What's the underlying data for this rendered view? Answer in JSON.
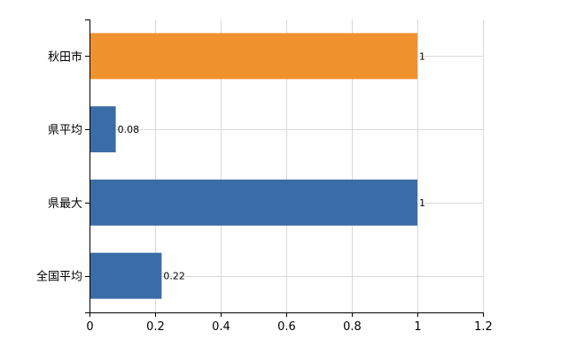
{
  "chart_data": {
    "type": "bar",
    "orientation": "horizontal",
    "categories": [
      "秋田市",
      "県平均",
      "県最大",
      "全国平均"
    ],
    "values": [
      1,
      0.08,
      1,
      0.22
    ],
    "value_labels": [
      "1",
      "0.08",
      "1",
      "0.22"
    ],
    "bar_colors": [
      "#f0922e",
      "#3a6ca8",
      "#3a6ca8",
      "#3a6ca8"
    ],
    "xlim": [
      0,
      1.2
    ],
    "x_ticks": [
      0,
      0.2,
      0.4,
      0.6,
      0.8,
      1,
      1.2
    ],
    "x_tick_labels": [
      "0",
      "0.2",
      "0.4",
      "0.6",
      "0.8",
      "1",
      "1.2"
    ],
    "grid": true,
    "title": "",
    "xlabel": "",
    "ylabel": ""
  }
}
